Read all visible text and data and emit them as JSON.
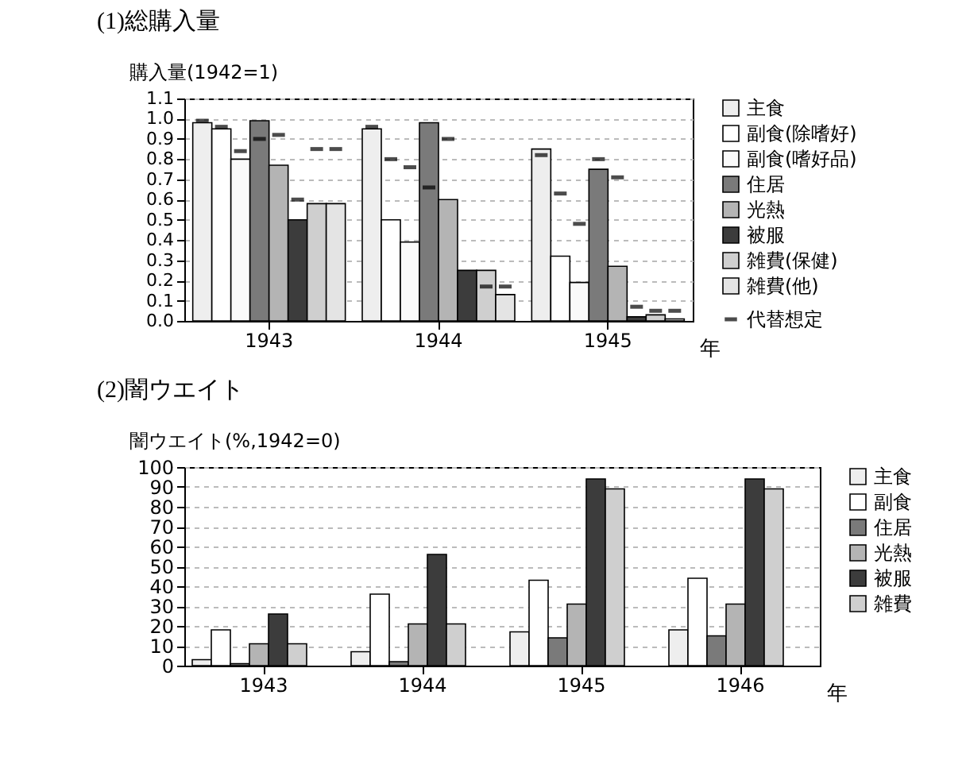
{
  "chart_data": [
    {
      "type": "bar",
      "title": "(1)総購入量",
      "ylabel": "購入量(1942=1)",
      "xlabel": "年",
      "categories": [
        "1943",
        "1944",
        "1945"
      ],
      "ylim": [
        0,
        1.1
      ],
      "yticks": [
        {
          "value": 0,
          "label": "0.0"
        },
        0.1,
        0.2,
        0.3,
        0.4,
        0.5,
        0.6,
        0.7,
        0.8,
        0.9,
        {
          "value": 1,
          "label": "1.0"
        },
        1.1
      ],
      "grid": "y",
      "legend": "right",
      "series": [
        {
          "name": "主食",
          "color": "#eeeeee",
          "values": [
            0.98,
            0.95,
            0.85
          ]
        },
        {
          "name": "副食(除嗜好)",
          "color": "#ffffff",
          "values": [
            0.95,
            0.5,
            0.32
          ]
        },
        {
          "name": "副食(嗜好品)",
          "color": "#fafafa",
          "values": [
            0.8,
            0.39,
            0.19
          ]
        },
        {
          "name": "住居",
          "color": "#7a7a7a",
          "values": [
            0.99,
            0.98,
            0.75
          ]
        },
        {
          "name": "光熱",
          "color": "#b4b4b4",
          "values": [
            0.77,
            0.6,
            0.27
          ]
        },
        {
          "name": "被服",
          "color": "#3c3c3c",
          "values": [
            0.5,
            0.25,
            0.02
          ]
        },
        {
          "name": "雑費(保健)",
          "color": "#cfcfcf",
          "values": [
            0.58,
            0.25,
            0.03
          ]
        },
        {
          "name": "雑費(他)",
          "color": "#e4e4e4",
          "values": [
            0.58,
            0.13,
            0.01
          ]
        },
        {
          "type": "scatter",
          "name": "代替想定",
          "color": "#000000",
          "values": [
            0.99,
            0.96,
            0.82
          ]
        },
        {
          "type": "scatter",
          "color": "#000000",
          "values": [
            0.96,
            0.8,
            0.63
          ]
        },
        {
          "type": "scatter",
          "color": "#000000",
          "values": [
            0.84,
            0.76,
            0.48
          ]
        },
        {
          "type": "scatter",
          "color": "#000000",
          "values": [
            0.9,
            0.66,
            0.8
          ]
        },
        {
          "type": "scatter",
          "color": "#000000",
          "values": [
            0.92,
            0.9,
            0.71
          ]
        },
        {
          "type": "scatter",
          "color": "#000000",
          "values": [
            0.6,
            null,
            0.07
          ]
        },
        {
          "type": "scatter",
          "color": "#000000",
          "values": [
            0.85,
            0.17,
            0.05
          ]
        },
        {
          "type": "scatter",
          "color": "#000000",
          "values": [
            0.85,
            0.17,
            0.05
          ]
        }
      ]
    },
    {
      "type": "bar",
      "title": "(2)闇ウエイト",
      "ylabel": "闇ウエイト(%,1942=0)",
      "xlabel": "年",
      "categories": [
        "1943",
        "1944",
        "1945",
        "1946"
      ],
      "ylim": [
        0,
        100
      ],
      "yticks": [
        0,
        10,
        20,
        30,
        40,
        50,
        60,
        70,
        80,
        90,
        100
      ],
      "grid": "y",
      "legend": "right",
      "series": [
        {
          "name": "主食",
          "color": "#eeeeee",
          "values": [
            3,
            7,
            17,
            18
          ]
        },
        {
          "name": "副食",
          "color": "#ffffff",
          "values": [
            18,
            36,
            43,
            44
          ]
        },
        {
          "name": "住居",
          "color": "#7a7a7a",
          "values": [
            1,
            2,
            14,
            15
          ]
        },
        {
          "name": "光熱",
          "color": "#b4b4b4",
          "values": [
            11,
            21,
            31,
            31
          ]
        },
        {
          "name": "被服",
          "color": "#3c3c3c",
          "values": [
            26,
            56,
            94,
            94
          ]
        },
        {
          "name": "雑費",
          "color": "#cfcfcf",
          "values": [
            11,
            21,
            89,
            89
          ]
        }
      ]
    }
  ]
}
